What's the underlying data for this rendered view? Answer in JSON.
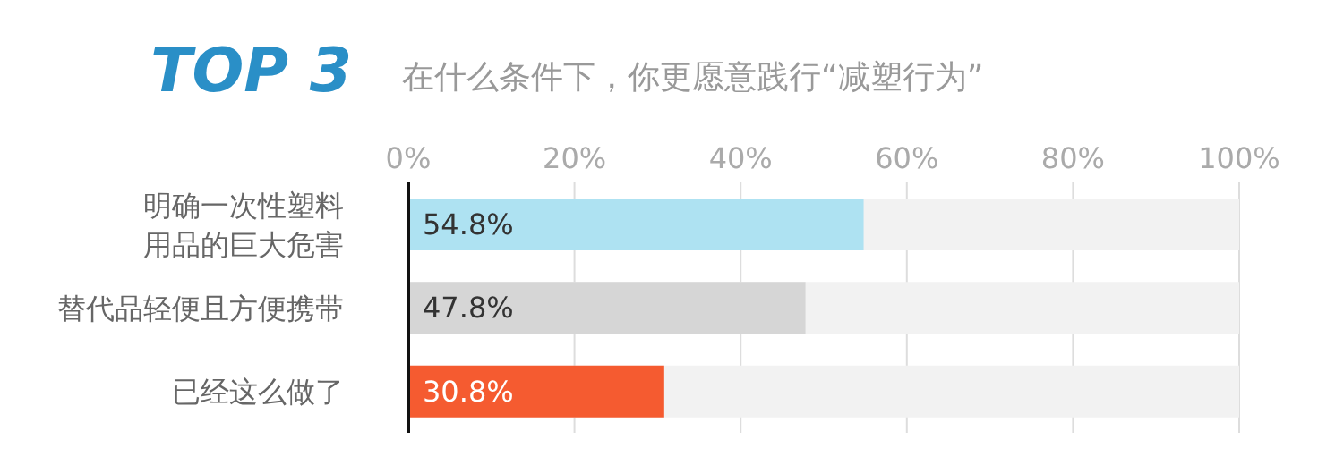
{
  "chart_data": {
    "type": "bar",
    "orientation": "horizontal",
    "title": "TOP 3",
    "subtitle": "在什么条件下，你更愿意践行“减塑行为”",
    "categories": [
      "明确一次性塑料用品的巨大危害",
      "替代品轻便且方便携带",
      "已经这么做了"
    ],
    "values": [
      54.8,
      47.8,
      30.8
    ],
    "colors": [
      "#aee2f2",
      "#d6d6d6",
      "#f55b30"
    ],
    "value_labels": [
      "54.8%",
      "47.8%",
      "30.8%"
    ],
    "xlim": [
      0,
      100
    ],
    "xticks": [
      {
        "value": 0,
        "label": "0%"
      },
      {
        "value": 20,
        "label": "20%"
      },
      {
        "value": 40,
        "label": "40%"
      },
      {
        "value": 60,
        "label": "60%"
      },
      {
        "value": 80,
        "label": "80%"
      },
      {
        "value": 100,
        "label": "100%"
      }
    ],
    "grid": "x"
  }
}
